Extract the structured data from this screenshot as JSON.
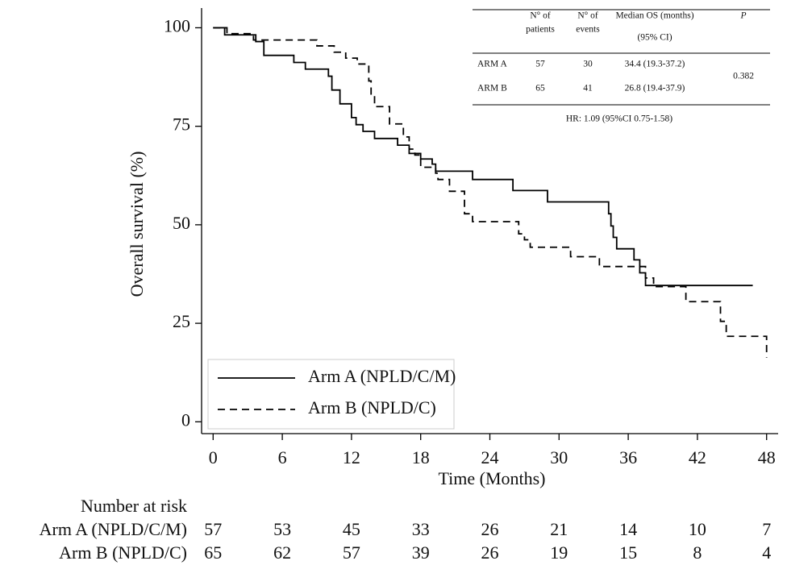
{
  "chart_data": {
    "type": "line",
    "step": true,
    "xlabel": "Time (Months)",
    "ylabel": "Overall survival (%)",
    "xlim": [
      -1,
      49
    ],
    "ylim": [
      -3,
      105
    ],
    "xticks": [
      0,
      6,
      12,
      18,
      24,
      30,
      36,
      42,
      48
    ],
    "yticks": [
      0,
      25,
      50,
      75,
      100
    ],
    "legend": "lower left",
    "series": [
      {
        "name": "Arm A (NPLD/C/M)",
        "color": "#000000",
        "dash": "solid",
        "x": [
          0,
          1,
          3.7,
          4.4,
          7,
          8,
          10,
          10.3,
          11,
          12,
          12.4,
          13,
          14,
          16,
          17,
          18,
          19,
          19.3,
          22.5,
          26,
          29,
          34.3,
          34.5,
          34.7,
          35,
          36.5,
          37,
          37.5,
          46.8
        ],
        "values": [
          100,
          98.2,
          96.5,
          93.0,
          91.2,
          89.5,
          87.7,
          84.2,
          80.7,
          77.2,
          75.4,
          73.7,
          71.9,
          70.2,
          68.1,
          66.7,
          65.4,
          63.6,
          61.5,
          58.7,
          55.8,
          52.8,
          49.7,
          46.8,
          43.9,
          41.1,
          37.8,
          34.6,
          34.6
        ]
      },
      {
        "name": "Arm B (NPLD/C)",
        "color": "#000000",
        "dash": "dashed",
        "x": [
          0,
          1.2,
          3.5,
          9,
          10.5,
          11.5,
          12.5,
          13.5,
          13.7,
          14,
          15.3,
          16.5,
          17,
          17.5,
          18,
          19.3,
          19.5,
          20.5,
          21.8,
          22.5,
          26.5,
          27,
          27.5,
          31,
          33.5,
          37.5,
          38.2,
          41,
          44,
          44.5,
          47.8,
          48
        ],
        "values": [
          100,
          98.5,
          96.9,
          95.4,
          93.8,
          92.3,
          90.8,
          86.5,
          83,
          80,
          75.6,
          72.3,
          69.2,
          67.7,
          64.6,
          63.1,
          61.5,
          58.5,
          52.8,
          50.8,
          47.7,
          46.2,
          44.3,
          41.9,
          39.4,
          36.5,
          34.3,
          30.5,
          25.5,
          21.7,
          21.7,
          16.3
        ]
      }
    ]
  },
  "inset_table": {
    "header": [
      [
        "N° of",
        "patients"
      ],
      [
        "N° of",
        "events"
      ],
      [
        "Median OS (months)",
        "(95% CI)"
      ],
      [
        "P"
      ]
    ],
    "rows": [
      {
        "arm": "ARM A",
        "patients": 57,
        "events": 30,
        "median_os": "34.4 (19.3-37.2)"
      },
      {
        "arm": "ARM B",
        "patients": 65,
        "events": 41,
        "median_os": "26.8 (19.4-37.9)"
      }
    ],
    "p_value": 0.382,
    "footnote": "HR: 1.09 (95%CI 0.75-1.58)"
  },
  "risk_table": {
    "title": "Number at risk",
    "rows": [
      {
        "name": "Arm A (NPLD/C/M)",
        "counts": [
          57,
          53,
          45,
          33,
          26,
          21,
          14,
          10,
          7
        ]
      },
      {
        "name": "Arm B (NPLD/C)",
        "counts": [
          65,
          62,
          57,
          39,
          26,
          19,
          15,
          8,
          4
        ]
      }
    ]
  }
}
